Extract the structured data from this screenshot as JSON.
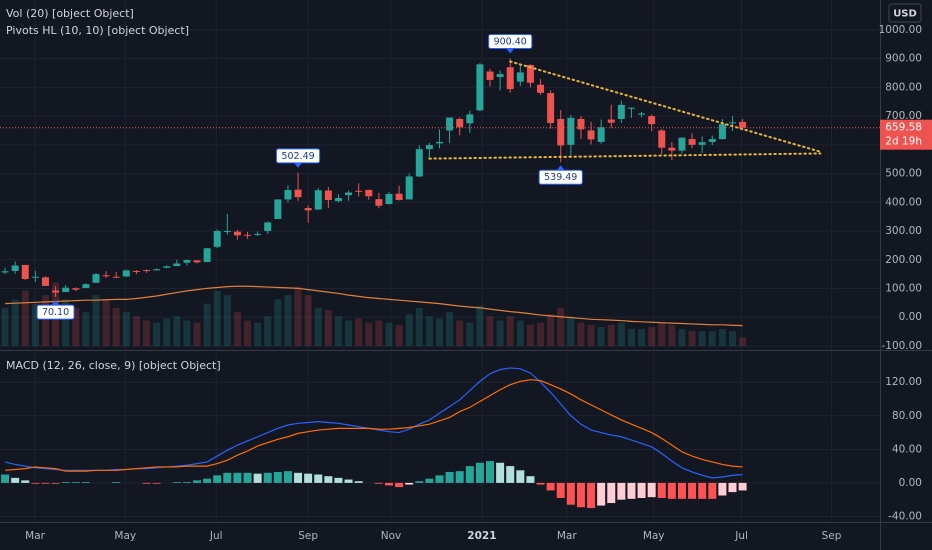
{
  "chart_data": [
    {
      "type": "candlestick",
      "currency": "USD",
      "legend": [
        "Vol (20) [object Object]",
        "Pivots HL (10, 10) [object Object]"
      ],
      "x": [
        0,
        1,
        2,
        3,
        4,
        5,
        6,
        7,
        8,
        9,
        10,
        11,
        12,
        13,
        14,
        15,
        16,
        17,
        18,
        19,
        20,
        21,
        22,
        23,
        24,
        25,
        26,
        27,
        28,
        29,
        30,
        31,
        32,
        33,
        34,
        35,
        36,
        37,
        38,
        39,
        40,
        41,
        42,
        43,
        44,
        45,
        46,
        47,
        48,
        49,
        50,
        51,
        52,
        53,
        54,
        55,
        56,
        57,
        58,
        59,
        60,
        61,
        62,
        63,
        64,
        65,
        66,
        67,
        68,
        69,
        70,
        71,
        72,
        73
      ],
      "open": [
        156,
        161,
        182,
        138,
        139,
        93,
        88,
        101,
        102,
        120,
        146,
        141,
        142,
        161,
        164,
        163,
        172,
        178,
        190,
        198,
        192,
        245,
        300,
        298,
        287,
        290,
        300,
        342,
        410,
        444,
        380,
        375,
        441,
        404,
        425,
        440,
        443,
        411,
        394,
        430,
        410,
        490,
        585,
        605,
        650,
        690,
        675,
        720,
        855,
        836,
        870,
        820,
        878,
        809,
        780,
        690,
        600,
        690,
        650,
        610,
        688,
        690,
        729,
        705,
        700,
        650,
        590,
        580,
        620,
        600,
        610,
        620,
        675,
        680
      ],
      "high": [
        172,
        194,
        182,
        161,
        142,
        108,
        112,
        104,
        118,
        154,
        160,
        158,
        166,
        164,
        167,
        170,
        181,
        200,
        201,
        199,
        241,
        306,
        359,
        304,
        297,
        299,
        333,
        410,
        459,
        502.49,
        389,
        450,
        453,
        428,
        441,
        466,
        444,
        433,
        436,
        458,
        500,
        599,
        607,
        654,
        695,
        695,
        719,
        884,
        864,
        859,
        900.4,
        878,
        880,
        829,
        790,
        721,
        704,
        700,
        680,
        688,
        739,
        754,
        730,
        715,
        706,
        655,
        610,
        625,
        640,
        629,
        632,
        690,
        700,
        690
      ],
      "low": [
        150,
        151,
        130,
        123,
        109,
        70.1,
        87,
        91,
        101,
        118,
        136,
        136,
        140,
        150,
        155,
        163,
        172,
        178,
        180,
        187,
        192,
        241,
        287,
        270,
        273,
        283,
        290,
        342,
        400,
        405,
        329,
        373,
        380,
        400,
        405,
        420,
        409,
        379,
        392,
        406,
        410,
        488,
        553,
        588,
        606,
        633,
        642,
        717,
        803,
        789,
        781,
        805,
        800,
        774,
        656,
        539.49,
        562,
        620,
        601,
        604,
        660,
        676,
        694,
        695,
        647,
        568,
        547,
        570,
        588,
        571,
        599,
        618,
        648,
        651
      ],
      "close": [
        160,
        180,
        133,
        141,
        109,
        86,
        103,
        96,
        115,
        150,
        145,
        140,
        163,
        160,
        163,
        167,
        177,
        187,
        199,
        191,
        240,
        300,
        300,
        285,
        286,
        290,
        330,
        410,
        443,
        418,
        372,
        442,
        408,
        415,
        434,
        439,
        421,
        388,
        429,
        408,
        490,
        585,
        599,
        610,
        695,
        661,
        706,
        880,
        826,
        846,
        794,
        852,
        816,
        781,
        676,
        598,
        694,
        654,
        619,
        661,
        677,
        739,
        729,
        709,
        672,
        590,
        580,
        625,
        600,
        609,
        620,
        672,
        678,
        659.58
      ],
      "up_color": "#26a69a",
      "down_color": "#ef5350",
      "volume": [
        90,
        110,
        130,
        100,
        120,
        150,
        110,
        90,
        80,
        120,
        110,
        90,
        80,
        70,
        60,
        55,
        65,
        70,
        60,
        55,
        100,
        130,
        120,
        80,
        60,
        55,
        70,
        110,
        120,
        140,
        120,
        90,
        85,
        70,
        60,
        65,
        55,
        60,
        55,
        50,
        75,
        90,
        70,
        65,
        80,
        60,
        55,
        95,
        70,
        60,
        70,
        60,
        50,
        55,
        75,
        90,
        70,
        55,
        50,
        45,
        50,
        55,
        40,
        40,
        45,
        55,
        50,
        40,
        35,
        35,
        35,
        40,
        35,
        20
      ],
      "volume_ma": [
        100,
        101,
        102,
        103,
        104,
        105,
        106,
        107,
        108,
        108,
        109,
        110,
        110,
        112,
        115,
        118,
        122,
        126,
        130,
        133,
        136,
        138,
        140,
        141,
        141,
        140,
        139,
        138,
        137,
        136,
        133,
        130,
        127,
        124,
        120,
        117,
        114,
        112,
        110,
        108,
        106,
        104,
        102,
        100,
        97,
        94,
        92,
        90,
        87,
        84,
        81,
        79,
        76,
        73,
        71,
        69,
        67,
        65,
        63,
        62,
        61,
        60,
        58,
        57,
        56,
        55,
        54,
        53,
        52,
        51,
        50,
        50,
        49,
        48
      ],
      "volume_ma_color": "#e0803a",
      "vol_ylim": [
        0,
        250
      ],
      "pivots": [
        {
          "x": 5,
          "value": 70.1,
          "label": "70.10",
          "side": "below"
        },
        {
          "x": 29,
          "value": 502.49,
          "label": "502.49",
          "side": "above"
        },
        {
          "x": 50,
          "value": 900.4,
          "label": "900.40",
          "side": "above"
        },
        {
          "x": 55,
          "value": 539.49,
          "label": "539.49",
          "side": "below"
        }
      ],
      "trendlines": [
        {
          "x": [
            50,
            80.7
          ],
          "y": [
            890,
            576
          ]
        },
        {
          "x": [
            42,
            80.7
          ],
          "y": [
            552,
            570
          ]
        }
      ],
      "trend_color": "#e8b63a",
      "countdown": "2d 19h",
      "xlim": [
        -0.5,
        86.6
      ],
      "xticks": [
        {
          "value": 2.97,
          "label": "Mar"
        },
        {
          "value": 11.9,
          "label": "May"
        },
        {
          "value": 20.9,
          "label": "Jul"
        },
        {
          "value": 30.0,
          "label": "Sep"
        },
        {
          "value": 38.2,
          "label": "Nov"
        },
        {
          "value": 47.2,
          "label": "2021"
        },
        {
          "value": 55.6,
          "label": "Mar"
        },
        {
          "value": 64.2,
          "label": "May"
        },
        {
          "value": 72.9,
          "label": "Jul"
        },
        {
          "value": 81.8,
          "label": "Sep"
        }
      ],
      "ylim": [
        -114,
        1104
      ],
      "yticks": [
        {
          "value": -100,
          "label": "-100.00"
        },
        {
          "value": 0,
          "label": "0.00"
        },
        {
          "value": 100,
          "label": "100.00"
        },
        {
          "value": 200,
          "label": "200.00"
        },
        {
          "value": 300,
          "label": "300.00"
        },
        {
          "value": 400,
          "label": "400.00"
        },
        {
          "value": 500,
          "label": "500.00"
        },
        {
          "value": 600,
          "label": "600.00"
        },
        {
          "value": 700,
          "label": "700.00"
        },
        {
          "value": 800,
          "label": "800.00"
        },
        {
          "value": 900,
          "label": "900.00"
        },
        {
          "value": 1000,
          "label": "1000.00"
        }
      ],
      "grid": true
    },
    {
      "type": "macd",
      "legend": "MACD (12, 26, close, 9) [object Object]",
      "macd": {
        "color": "#2962ff",
        "values": [
          25,
          22,
          20,
          18,
          17,
          16,
          15,
          15,
          15,
          15,
          15,
          16,
          16,
          17,
          17,
          18,
          19,
          20,
          21,
          23,
          25,
          32,
          39,
          45,
          50,
          55,
          60,
          65,
          69,
          71,
          72,
          73,
          72,
          71,
          69,
          67,
          65,
          63,
          61,
          60,
          64,
          70,
          75,
          83,
          91,
          99,
          110,
          121,
          130,
          135,
          137,
          136,
          131,
          120,
          108,
          94,
          80,
          70,
          63,
          60,
          57,
          55,
          51,
          47,
          43,
          35,
          26,
          18,
          13,
          9,
          6,
          7,
          9,
          10
        ]
      },
      "signal": {
        "color": "#ff6d00",
        "values": [
          15,
          16,
          17,
          19,
          18,
          17,
          14,
          14,
          14,
          15,
          15,
          15,
          16,
          17,
          18,
          19,
          19,
          19,
          20,
          20,
          20,
          23,
          27,
          33,
          38,
          44,
          48,
          52,
          55,
          59,
          61,
          63,
          64,
          65,
          65,
          65,
          65,
          64,
          64,
          65,
          66,
          68,
          70,
          74,
          78,
          85,
          90,
          97,
          104,
          111,
          117,
          121,
          123,
          122,
          117,
          112,
          106,
          99,
          93,
          87,
          81,
          75,
          70,
          65,
          60,
          53,
          45,
          37,
          32,
          28,
          25,
          22,
          20,
          19
        ]
      },
      "histogram": {
        "colors": [
          "#26a69a",
          "#b2dfdb",
          "#ff5252",
          "#ffcdd2"
        ],
        "values": [
          10,
          6,
          3,
          -1,
          -1,
          -1,
          1,
          1,
          1,
          0,
          0,
          1,
          0,
          0,
          -1,
          -1,
          0,
          1,
          1,
          3,
          5,
          9,
          12,
          12,
          12,
          11,
          12,
          13,
          14,
          12,
          11,
          10,
          8,
          6,
          4,
          2,
          0,
          -1,
          -3,
          -5,
          -2,
          2,
          5,
          9,
          13,
          14,
          20,
          24,
          26,
          24,
          20,
          15,
          8,
          -2,
          -9,
          -18,
          -26,
          -29,
          -30,
          -27,
          -24,
          -20,
          -19,
          -18,
          -17,
          -18,
          -19,
          -19,
          -19,
          -19,
          -19,
          -15,
          -11,
          -9
        ]
      },
      "ylim": [
        -46.6,
        156
      ],
      "yticks": [
        {
          "value": -40,
          "label": "-40.00"
        },
        {
          "value": 0,
          "label": "0.00"
        },
        {
          "value": 40,
          "label": "40.00"
        },
        {
          "value": 80,
          "label": "80.00"
        },
        {
          "value": 120,
          "label": "120.00"
        }
      ],
      "grid": true
    }
  ]
}
